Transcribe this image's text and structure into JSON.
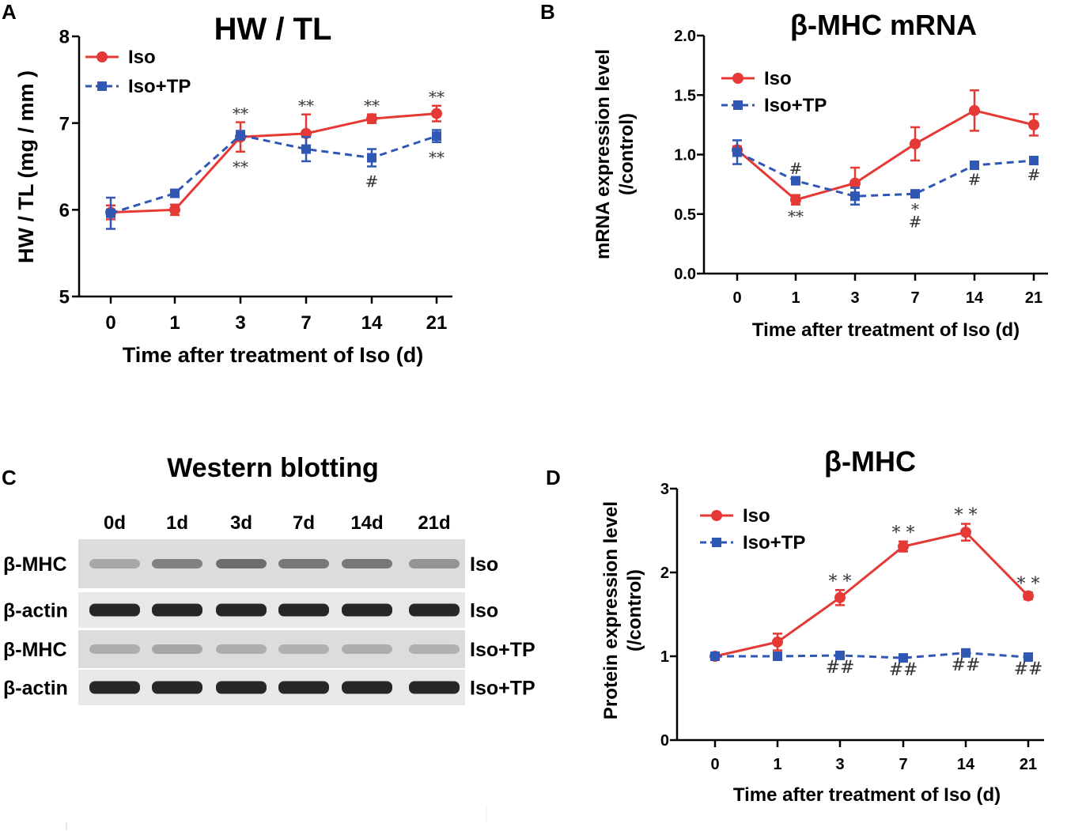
{
  "panel_letters": [
    "A",
    "B",
    "C",
    "D"
  ],
  "colors": {
    "iso": "#e53935",
    "iso_tp": "#2f57b3",
    "axis": "#000000",
    "annotation": "#333333"
  },
  "chart_data": [
    {
      "id": "A",
      "type": "line",
      "title": "HW / TL",
      "xlabel": "Time after treatment of Iso (d)",
      "ylabel": "HW / TL (mg / mm )",
      "categories": [
        "0",
        "1",
        "3",
        "7",
        "14",
        "21"
      ],
      "ylim": [
        5,
        8
      ],
      "yticks": [
        "5",
        "6",
        "7",
        "8"
      ],
      "series": [
        {
          "name": "Iso",
          "marker": "circle",
          "style": "solid",
          "values": [
            5.97,
            6.0,
            6.84,
            6.88,
            7.05,
            7.11
          ],
          "errors": [
            0.08,
            0.06,
            0.17,
            0.22,
            0.05,
            0.09
          ]
        },
        {
          "name": "Iso+TP",
          "marker": "square",
          "style": "dashed",
          "values": [
            5.96,
            6.19,
            6.86,
            6.7,
            6.6,
            6.85
          ],
          "errors": [
            0.18,
            0.03,
            0.05,
            0.14,
            0.1,
            0.07
          ]
        }
      ],
      "annotations": [
        {
          "category": "3",
          "text": "**",
          "position": "above"
        },
        {
          "category": "3",
          "text": "**",
          "position": "below"
        },
        {
          "category": "7",
          "text": "**",
          "position": "above"
        },
        {
          "category": "14",
          "text": "**",
          "position": "above"
        },
        {
          "category": "14",
          "text": "#",
          "position": "below"
        },
        {
          "category": "21",
          "text": "**",
          "position": "above"
        },
        {
          "category": "21",
          "text": "**",
          "position": "below"
        }
      ]
    },
    {
      "id": "B",
      "type": "line",
      "title": "β-MHC mRNA",
      "xlabel": "Time after treatment of Iso (d)",
      "ylabel": [
        "mRNA expression level",
        "(/control)"
      ],
      "categories": [
        "0",
        "1",
        "3",
        "7",
        "14",
        "21"
      ],
      "ylim": [
        0,
        2
      ],
      "yticks": [
        "0.0",
        "0.5",
        "1.0",
        "1.5",
        "2.0"
      ],
      "series": [
        {
          "name": "Iso",
          "marker": "circle",
          "style": "solid",
          "values": [
            1.04,
            0.62,
            0.76,
            1.09,
            1.37,
            1.25
          ],
          "errors": [
            0.03,
            0.04,
            0.13,
            0.14,
            0.17,
            0.09
          ]
        },
        {
          "name": "Iso+TP",
          "marker": "square",
          "style": "dashed",
          "values": [
            1.02,
            0.78,
            0.65,
            0.67,
            0.91,
            0.95
          ],
          "errors": [
            0.1,
            0.03,
            0.07,
            0.03,
            0.02,
            0.02
          ]
        }
      ],
      "annotations": [
        {
          "category": "1",
          "text": "#",
          "position": "above"
        },
        {
          "category": "1",
          "text": "**",
          "position": "below"
        },
        {
          "category": "7",
          "text": "*",
          "position": "below"
        },
        {
          "category": "7",
          "text": "#",
          "position": "below2"
        },
        {
          "category": "14",
          "text": "#",
          "position": "below"
        },
        {
          "category": "21",
          "text": "#",
          "position": "below"
        }
      ]
    },
    {
      "id": "D",
      "type": "line",
      "title": "β-MHC",
      "xlabel": "Time after treatment of Iso (d)",
      "ylabel": [
        "Protein expression level",
        "(/control)"
      ],
      "categories": [
        "0",
        "1",
        "3",
        "7",
        "14",
        "21"
      ],
      "ylim": [
        0,
        3
      ],
      "yticks": [
        "0",
        "1",
        "2",
        "3"
      ],
      "series": [
        {
          "name": "Iso",
          "marker": "circle",
          "style": "solid",
          "values": [
            1.0,
            1.17,
            1.7,
            2.31,
            2.48,
            1.72
          ],
          "errors": [
            0.02,
            0.1,
            0.09,
            0.06,
            0.1,
            0.04
          ]
        },
        {
          "name": "Iso+TP",
          "marker": "square",
          "style": "dashed",
          "values": [
            1.0,
            1.0,
            1.01,
            0.98,
            1.04,
            0.99
          ],
          "errors": [
            0.02,
            0.02,
            0.02,
            0.02,
            0.02,
            0.02
          ]
        }
      ],
      "annotations": [
        {
          "category": "3",
          "text": "* *",
          "position": "above"
        },
        {
          "category": "7",
          "text": "* *",
          "position": "above"
        },
        {
          "category": "14",
          "text": "* *",
          "position": "above"
        },
        {
          "category": "21",
          "text": "* *",
          "position": "above"
        },
        {
          "category": "3",
          "text": "##",
          "position": "below"
        },
        {
          "category": "7",
          "text": "##",
          "position": "below"
        },
        {
          "category": "14",
          "text": "##",
          "position": "below"
        },
        {
          "category": "21",
          "text": "##",
          "position": "below"
        }
      ]
    }
  ],
  "western_blot": {
    "title": "Western blotting",
    "lanes": [
      "0d",
      "1d",
      "3d",
      "7d",
      "14d",
      "21d"
    ],
    "rows": [
      {
        "protein": "β-MHC",
        "group": "Iso",
        "intensity": [
          0.15,
          0.35,
          0.45,
          0.4,
          0.4,
          0.25
        ]
      },
      {
        "protein": "β-actin",
        "group": "Iso",
        "intensity": [
          1,
          1,
          1,
          1,
          1,
          1
        ]
      },
      {
        "protein": "β-MHC",
        "group": "Iso+TP",
        "intensity": [
          0.12,
          0.15,
          0.12,
          0.1,
          0.12,
          0.1
        ]
      },
      {
        "protein": "β-actin",
        "group": "Iso+TP",
        "intensity": [
          1,
          1,
          1,
          1,
          1,
          1
        ]
      }
    ]
  }
}
